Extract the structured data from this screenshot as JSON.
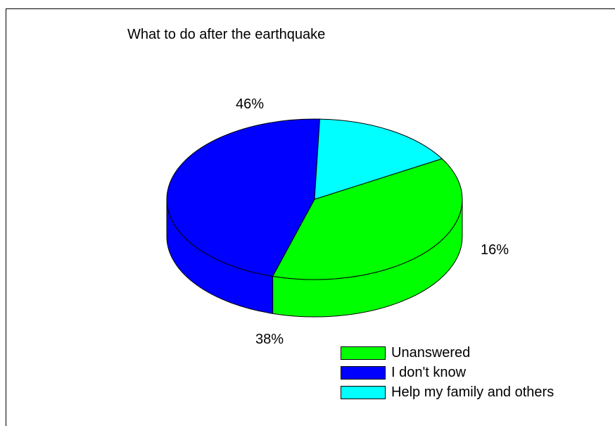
{
  "chart_data": {
    "type": "pie",
    "title": "What to do after the earthquake",
    "style": "3d",
    "series": [
      {
        "name": "Unanswered",
        "value": 38,
        "label": "38%",
        "color": "#00ff00"
      },
      {
        "name": "I don't know",
        "value": 46,
        "label": "46%",
        "color": "#0000ff"
      },
      {
        "name": "Help my family and others",
        "value": 16,
        "label": "16%",
        "color": "#00ffff"
      }
    ],
    "legend_placement": "bottom-right"
  }
}
